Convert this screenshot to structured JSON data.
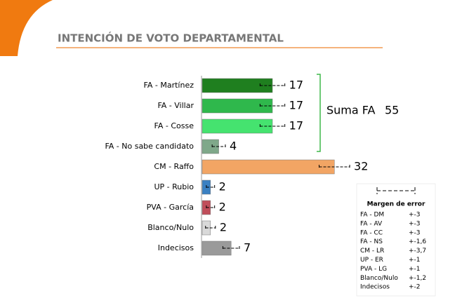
{
  "chart_data": {
    "type": "bar",
    "title": "INTENCIÓN DE VOTO DEPARTAMENTAL",
    "categories": [
      "FA - Martínez",
      "FA - Villar",
      "FA - Cosse",
      "FA - No sabe candidato",
      "CM - Raffo",
      "UP - Rubio",
      "PVA - García",
      "Blanco/Nulo",
      "Indecisos"
    ],
    "values": [
      17,
      17,
      17,
      4,
      32,
      2,
      2,
      2,
      7
    ],
    "errors": [
      3,
      3,
      3,
      1.6,
      3.7,
      1,
      1,
      1.2,
      2
    ],
    "colors": [
      "#1f7f1f",
      "#2fb84c",
      "#45e36f",
      "#7fa88a",
      "#f2a564",
      "#3a80c2",
      "#c04e5a",
      "#d9d9d9",
      "#9a9a9a"
    ],
    "xlim": [
      0,
      60
    ],
    "annotation": {
      "text": "Suma FA",
      "value": 55
    },
    "error_legend": {
      "title": "Margen de error",
      "names": [
        "FA - DM",
        "FA - AV",
        "FA - CC",
        "FA - NS",
        "CM - LR",
        "UP - ER",
        "PVA - LG",
        "Blanco/Nulo",
        "Indecisos"
      ],
      "labels": [
        "+-3",
        "+-3",
        "+-3",
        "+-1,6",
        "+-3,7",
        "+-1",
        "+-1",
        "+-1,2",
        "+-2"
      ]
    }
  }
}
